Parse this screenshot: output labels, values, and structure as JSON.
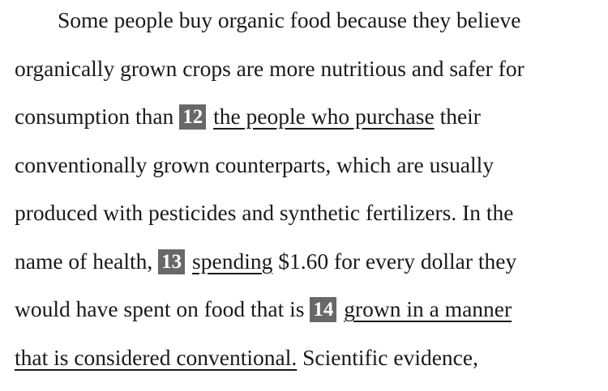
{
  "passage": {
    "l1": "Some people buy organic food because they believe",
    "l2": "organically grown crops are more nutritious and safer for",
    "l3_before": "consumption than ",
    "q12_num": "12",
    "q12_text": "the people who purchase",
    "l3_after": " their",
    "l4": "conventionally grown counterparts, which are usually",
    "l5": "produced with pesticides and synthetic fertilizers. In the",
    "l6_before": "name of health, ",
    "q13_num": "13",
    "q13_text": "spending",
    "l6_after": " $1.60 for every dollar they",
    "l7_before": "would have spent on food that is ",
    "q14_num": "14",
    "q14_text_a": "grown in a manner",
    "q14_text_b": "that is considered conventional.",
    "l8_after": " Scientific evidence,"
  },
  "colors": {
    "text": "#1a1a1a",
    "question_badge_bg": "#686868",
    "question_badge_text": "#ffffff"
  }
}
